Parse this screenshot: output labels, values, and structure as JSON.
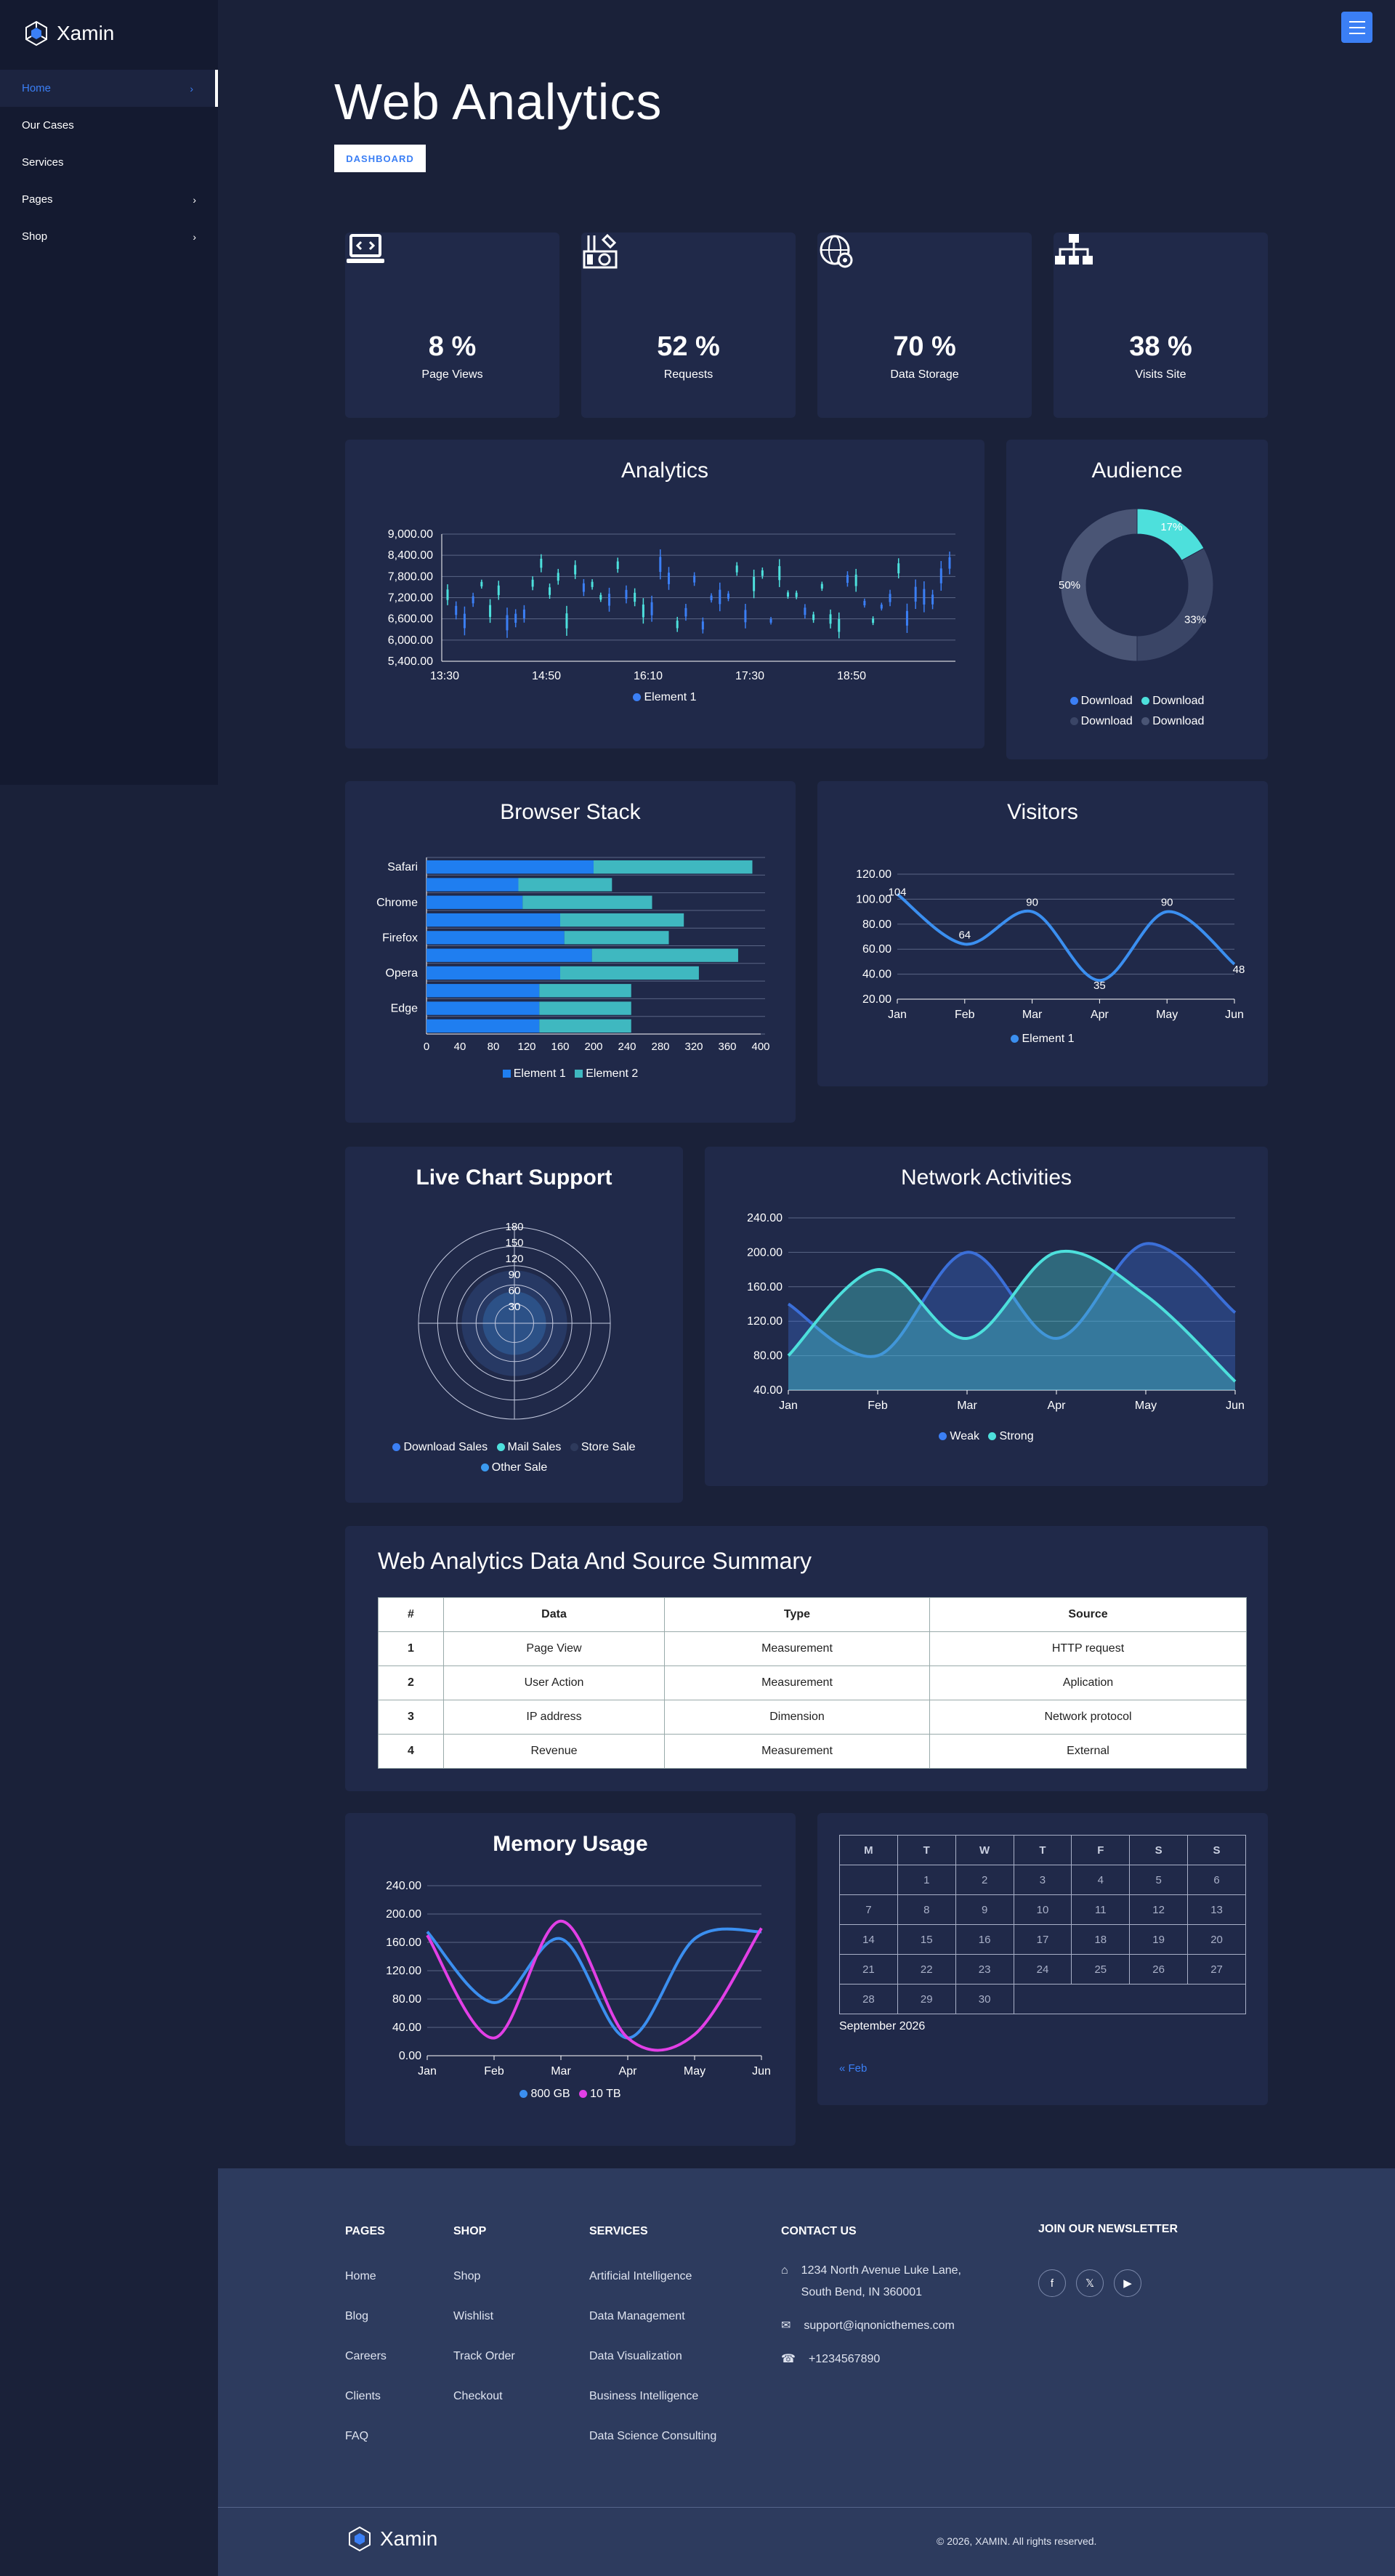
{
  "brand": {
    "name": "Xamin"
  },
  "sidebar": {
    "items": [
      {
        "label": "Home",
        "active": true,
        "has_children": true
      },
      {
        "label": "Our Cases",
        "has_children": false
      },
      {
        "label": "Services",
        "has_children": false
      },
      {
        "label": "Pages",
        "has_children": true
      },
      {
        "label": "Shop",
        "has_children": true
      }
    ]
  },
  "header": {
    "title": "Web Analytics",
    "badge": "DASHBOARD"
  },
  "stats": [
    {
      "value": "8 %",
      "label": "Page Views",
      "icon": "laptop-code-icon"
    },
    {
      "value": "52 %",
      "label": "Requests",
      "icon": "tools-icon"
    },
    {
      "value": "70 %",
      "label": "Data Storage",
      "icon": "globe-settings-icon"
    },
    {
      "value": "38 %",
      "label": "Visits Site",
      "icon": "sitemap-icon"
    }
  ],
  "analytics": {
    "title": "Analytics",
    "legend": "Element 1"
  },
  "audience": {
    "title": "Audience",
    "legend": [
      "Download",
      "Download",
      "Download",
      "Download"
    ]
  },
  "browser_stack": {
    "title": "Browser Stack",
    "legend": [
      "Element 1",
      "Element 2"
    ]
  },
  "visitors": {
    "title": "Visitors",
    "legend": "Element 1"
  },
  "live_chart": {
    "title": "Live Chart Support",
    "legend": [
      "Download Sales",
      "Mail Sales",
      "Store Sale",
      "Other Sale"
    ]
  },
  "network": {
    "title": "Network Activities",
    "legend": [
      "Weak",
      "Strong"
    ]
  },
  "summary": {
    "title": "Web Analytics Data And Source Summary",
    "headers": [
      "#",
      "Data",
      "Type",
      "Source"
    ],
    "rows": [
      [
        "1",
        "Page View",
        "Measurement",
        "HTTP request"
      ],
      [
        "2",
        "User Action",
        "Measurement",
        "Aplication"
      ],
      [
        "3",
        "IP address",
        "Dimension",
        "Network protocol"
      ],
      [
        "4",
        "Revenue",
        "Measurement",
        "External"
      ]
    ]
  },
  "memory": {
    "title": "Memory Usage",
    "legend": [
      "800 GB",
      "10 TB"
    ]
  },
  "calendar": {
    "days": [
      "M",
      "T",
      "W",
      "T",
      "F",
      "S",
      "S"
    ],
    "weeks": [
      [
        "",
        "1",
        "2",
        "3",
        "4",
        "5",
        "6"
      ],
      [
        "7",
        "8",
        "9",
        "10",
        "11",
        "12",
        "13"
      ],
      [
        "14",
        "15",
        "16",
        "17",
        "18",
        "19",
        "20"
      ],
      [
        "21",
        "22",
        "23",
        "24",
        "25",
        "26",
        "27"
      ],
      [
        "28",
        "29",
        "30",
        "",
        "",
        "",
        ""
      ]
    ],
    "month": "September 2026",
    "prev": "« Feb"
  },
  "footer": {
    "pages": {
      "heading": "PAGES",
      "items": [
        "Home",
        "Blog",
        "Careers",
        "Clients",
        "FAQ"
      ]
    },
    "shop": {
      "heading": "SHOP",
      "items": [
        "Shop",
        "Wishlist",
        "Track Order",
        "Checkout"
      ]
    },
    "services": {
      "heading": "SERVICES",
      "items": [
        "Artificial Intelligence",
        "Data Management",
        "Data Visualization",
        "Business Intelligence",
        "Data Science Consulting"
      ]
    },
    "contact": {
      "heading": "CONTACT US",
      "address1": "1234 North Avenue Luke Lane,",
      "address2": "South Bend, IN 360001",
      "email": "support@iqnonicthemes.com",
      "phone": "+1234567890"
    },
    "newsletter": {
      "heading": "JOIN OUR NEWSLETTER"
    },
    "copyright": "© 2026, XAMIN. All rights reserved."
  },
  "colors": {
    "accent": "#3b7ff5",
    "teal": "#4de0dc",
    "magenta": "#e23fe6",
    "bg": "#1a2139",
    "card": "#202949"
  },
  "chart_data": [
    {
      "type": "candlestick",
      "title": "Analytics",
      "y_ticks": [
        "9,000.00",
        "8,400.00",
        "7,800.00",
        "7,200.00",
        "6,600.00",
        "6,000.00",
        "5,400.00"
      ],
      "x_ticks": [
        "13:30",
        "14:50",
        "16:10",
        "17:30",
        "18:50"
      ],
      "ylim": [
        5400,
        9000
      ],
      "series": [
        {
          "name": "Element 1"
        }
      ]
    },
    {
      "type": "pie",
      "title": "Audience",
      "values": [
        17,
        33,
        50
      ],
      "labels": [
        "17%",
        "33%",
        "50%"
      ],
      "colors": [
        "#4de0dc",
        "#3a4566",
        "#4a5575"
      ]
    },
    {
      "type": "bar",
      "title": "Browser Stack",
      "categories": [
        "Safari",
        "",
        "Chrome",
        "",
        "Firefox",
        "",
        "Opera",
        "",
        "Edge",
        ""
      ],
      "x_ticks": [
        "0",
        "40",
        "80",
        "120",
        "160",
        "200",
        "240",
        "280",
        "320",
        "360",
        "400"
      ],
      "xlim": [
        0,
        400
      ],
      "series": [
        {
          "name": "Element 1",
          "values": [
            200,
            110,
            115,
            160,
            165,
            198,
            160,
            135,
            135,
            135
          ]
        },
        {
          "name": "Element 2",
          "values": [
            190,
            112,
            155,
            148,
            125,
            175,
            166,
            110,
            110,
            110
          ]
        }
      ]
    },
    {
      "type": "line",
      "title": "Visitors",
      "categories": [
        "Jan",
        "Feb",
        "Mar",
        "Apr",
        "May",
        "Jun"
      ],
      "y_ticks": [
        "120.00",
        "100.00",
        "80.00",
        "60.00",
        "40.00",
        "20.00"
      ],
      "ylim": [
        20,
        120
      ],
      "series": [
        {
          "name": "Element 1",
          "values": [
            104,
            64,
            90,
            35,
            90,
            48
          ]
        }
      ]
    },
    {
      "type": "radar",
      "title": "Live Chart Support",
      "r_ticks": [
        "180",
        "150",
        "120",
        "90",
        "60",
        "30"
      ],
      "series": [
        {
          "name": "Download Sales"
        },
        {
          "name": "Mail Sales"
        },
        {
          "name": "Store Sale"
        },
        {
          "name": "Other Sale"
        }
      ]
    },
    {
      "type": "area",
      "title": "Network Activities",
      "categories": [
        "Jan",
        "Feb",
        "Mar",
        "Apr",
        "May",
        "Jun"
      ],
      "y_ticks": [
        "240.00",
        "200.00",
        "160.00",
        "120.00",
        "80.00",
        "40.00"
      ],
      "ylim": [
        40,
        240
      ],
      "series": [
        {
          "name": "Weak",
          "values": [
            140,
            80,
            200,
            100,
            210,
            130
          ]
        },
        {
          "name": "Strong",
          "values": [
            80,
            180,
            100,
            200,
            150,
            50
          ]
        }
      ]
    },
    {
      "type": "line",
      "title": "Memory Usage",
      "categories": [
        "Jan",
        "Feb",
        "Mar",
        "Apr",
        "May",
        "Jun"
      ],
      "y_ticks": [
        "240.00",
        "200.00",
        "160.00",
        "120.00",
        "80.00",
        "40.00",
        "0.00"
      ],
      "ylim": [
        0,
        240
      ],
      "series": [
        {
          "name": "800 GB",
          "values": [
            175,
            75,
            165,
            25,
            165,
            175
          ]
        },
        {
          "name": "10 TB",
          "values": [
            170,
            25,
            190,
            25,
            30,
            180
          ]
        }
      ]
    }
  ]
}
